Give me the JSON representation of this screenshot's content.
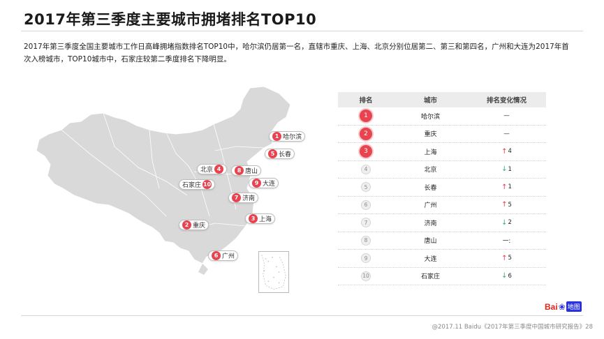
{
  "header": {
    "title": "2017年第三季度主要城市拥堵排名TOP10",
    "description": "2017年第三季度全国主要城市工作日高峰拥堵指数排名TOP10中，哈尔滨仍居第一名，直辖市重庆、上海、北京分别位居第二、第三和第四名，广州和大连为2017年首次入榜城市，TOP10城市中，石家庄较第二季度排名下降明显。"
  },
  "map": {
    "land_color": "#d9d9d9",
    "marker_color": "#e83a4a",
    "cities": [
      {
        "rank": "1",
        "name": "哈尔滨"
      },
      {
        "rank": "5",
        "name": "长春"
      },
      {
        "rank": "4",
        "name": "北京"
      },
      {
        "rank": "8",
        "name": "唐山"
      },
      {
        "rank": "10",
        "name": "石家庄"
      },
      {
        "rank": "9",
        "name": "大连"
      },
      {
        "rank": "7",
        "name": "济南"
      },
      {
        "rank": "3",
        "name": "上海"
      },
      {
        "rank": "2",
        "name": "重庆"
      },
      {
        "rank": "6",
        "name": "广州"
      }
    ]
  },
  "table": {
    "headers": [
      "排名",
      "城市",
      "排名变化情况"
    ],
    "rows": [
      {
        "rank": "1",
        "city": "哈尔滨",
        "change": "—",
        "dir": "none"
      },
      {
        "rank": "2",
        "city": "重庆",
        "change": "—",
        "dir": "none"
      },
      {
        "rank": "3",
        "city": "上海",
        "change": "4",
        "dir": "up"
      },
      {
        "rank": "4",
        "city": "北京",
        "change": "1",
        "dir": "down"
      },
      {
        "rank": "5",
        "city": "长春",
        "change": "1",
        "dir": "up"
      },
      {
        "rank": "6",
        "city": "广州",
        "change": "5",
        "dir": "up"
      },
      {
        "rank": "7",
        "city": "济南",
        "change": "2",
        "dir": "down"
      },
      {
        "rank": "8",
        "city": "唐山",
        "change": "一:",
        "dir": "none"
      },
      {
        "rank": "9",
        "city": "大连",
        "change": "5",
        "dir": "up"
      },
      {
        "rank": "10",
        "city": "石家庄",
        "change": "6",
        "dir": "down"
      }
    ]
  },
  "logo": {
    "text_a": "Bai",
    "text_b": "地图"
  },
  "footer": {
    "text": "@2017.11 Baidu《2017年第三季度中国城市研究报告》28"
  }
}
